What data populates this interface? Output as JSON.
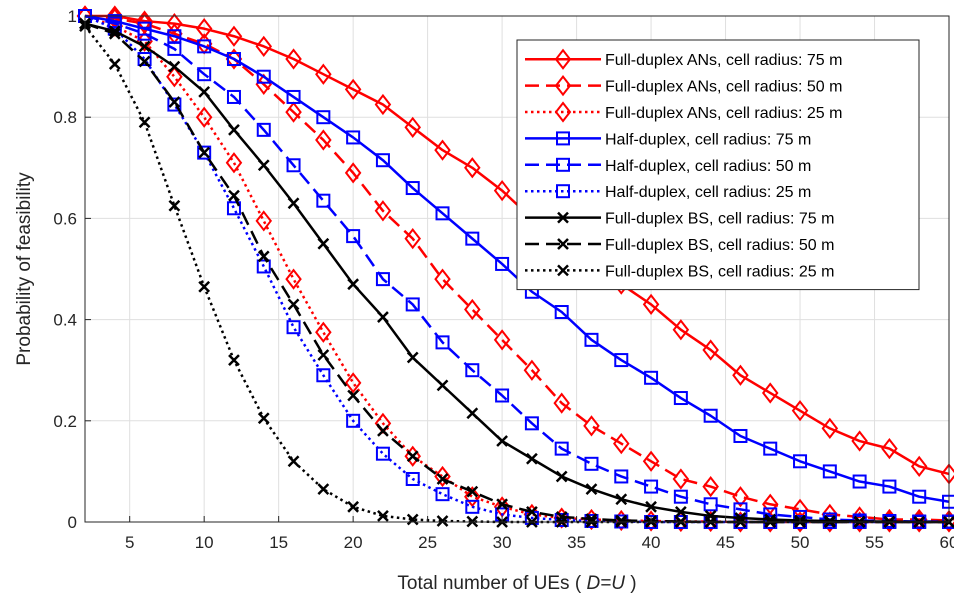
{
  "chart_data": {
    "type": "line",
    "xlabel": "Total number of UEs (",
    "xlabel_italic": "D=U",
    "xlabel_end": ")",
    "ylabel": "Probability of feasibility",
    "xlim": [
      2,
      60
    ],
    "ylim": [
      0,
      1
    ],
    "xticks": [
      5,
      10,
      15,
      20,
      25,
      30,
      35,
      40,
      45,
      50,
      55,
      60
    ],
    "yticks": [
      0,
      0.2,
      0.4,
      0.6,
      0.8,
      1
    ],
    "ytick_labels": [
      "0",
      "0.2",
      "0.4",
      "0.6",
      "0.8",
      "1"
    ],
    "grid": true,
    "legend_position": "top-right",
    "x": [
      2,
      4,
      6,
      8,
      10,
      12,
      14,
      16,
      18,
      20,
      22,
      24,
      26,
      28,
      30,
      32,
      34,
      36,
      38,
      40,
      42,
      44,
      46,
      48,
      50,
      52,
      54,
      56,
      58,
      60
    ],
    "series": [
      {
        "name": "Full-duplex ANs, cell radius: 75 m",
        "color": "#ff0000",
        "dash": "solid",
        "marker": "diamond",
        "values": [
          1.0,
          1.0,
          0.99,
          0.985,
          0.975,
          0.96,
          0.94,
          0.915,
          0.885,
          0.855,
          0.825,
          0.78,
          0.735,
          0.7,
          0.655,
          0.6,
          0.56,
          0.51,
          0.47,
          0.43,
          0.38,
          0.34,
          0.29,
          0.255,
          0.22,
          0.185,
          0.16,
          0.145,
          0.11,
          0.095
        ]
      },
      {
        "name": "Full-duplex ANs, cell radius: 50 m",
        "color": "#ff0000",
        "dash": "dashed",
        "marker": "diamond",
        "values": [
          1.0,
          0.995,
          0.985,
          0.965,
          0.945,
          0.915,
          0.865,
          0.81,
          0.755,
          0.69,
          0.615,
          0.56,
          0.48,
          0.42,
          0.36,
          0.3,
          0.235,
          0.19,
          0.155,
          0.12,
          0.085,
          0.07,
          0.05,
          0.035,
          0.025,
          0.015,
          0.01,
          0.005,
          0.005,
          0.003
        ]
      },
      {
        "name": "Full-duplex ANs, cell radius: 25 m",
        "color": "#ff0000",
        "dash": "dotted",
        "marker": "diamond",
        "values": [
          1.0,
          0.98,
          0.95,
          0.88,
          0.8,
          0.71,
          0.595,
          0.48,
          0.375,
          0.275,
          0.195,
          0.13,
          0.09,
          0.05,
          0.03,
          0.015,
          0.008,
          0.005,
          0.003,
          0.002,
          0.001,
          0.001,
          0.0,
          0.0,
          0.0,
          0.0,
          0.0,
          0.0,
          0.0,
          0.0
        ]
      },
      {
        "name": "Half-duplex, cell radius: 75 m",
        "color": "#0000ff",
        "dash": "solid",
        "marker": "square",
        "values": [
          1.0,
          0.99,
          0.975,
          0.96,
          0.94,
          0.915,
          0.88,
          0.84,
          0.8,
          0.76,
          0.715,
          0.66,
          0.61,
          0.56,
          0.51,
          0.455,
          0.415,
          0.36,
          0.32,
          0.285,
          0.245,
          0.21,
          0.17,
          0.145,
          0.12,
          0.1,
          0.08,
          0.07,
          0.05,
          0.04
        ]
      },
      {
        "name": "Half-duplex, cell radius: 50 m",
        "color": "#0000ff",
        "dash": "dashed",
        "marker": "square",
        "values": [
          1.0,
          0.985,
          0.965,
          0.935,
          0.885,
          0.84,
          0.775,
          0.705,
          0.635,
          0.565,
          0.48,
          0.43,
          0.355,
          0.3,
          0.25,
          0.195,
          0.145,
          0.115,
          0.09,
          0.07,
          0.05,
          0.035,
          0.025,
          0.015,
          0.01,
          0.005,
          0.003,
          0.002,
          0.001,
          0.001
        ]
      },
      {
        "name": "Half-duplex, cell radius: 25 m",
        "color": "#0000ff",
        "dash": "dotted",
        "marker": "square",
        "values": [
          1.0,
          0.975,
          0.915,
          0.825,
          0.73,
          0.62,
          0.505,
          0.385,
          0.29,
          0.2,
          0.135,
          0.085,
          0.055,
          0.03,
          0.015,
          0.008,
          0.004,
          0.002,
          0.001,
          0.0,
          0.0,
          0.0,
          0.0,
          0.0,
          0.0,
          0.0,
          0.0,
          0.0,
          0.0,
          0.0
        ]
      },
      {
        "name": "Full-duplex BS, cell radius: 75 m",
        "color": "#000000",
        "dash": "solid",
        "marker": "x",
        "values": [
          0.985,
          0.97,
          0.94,
          0.9,
          0.85,
          0.775,
          0.705,
          0.63,
          0.55,
          0.47,
          0.405,
          0.325,
          0.27,
          0.215,
          0.16,
          0.125,
          0.09,
          0.065,
          0.045,
          0.03,
          0.02,
          0.012,
          0.008,
          0.005,
          0.003,
          0.002,
          0.001,
          0.001,
          0.0,
          0.0
        ]
      },
      {
        "name": "Full-duplex BS, cell radius: 50 m",
        "color": "#000000",
        "dash": "dashed",
        "marker": "x",
        "values": [
          0.985,
          0.965,
          0.91,
          0.83,
          0.73,
          0.645,
          0.525,
          0.43,
          0.33,
          0.25,
          0.18,
          0.13,
          0.085,
          0.06,
          0.035,
          0.02,
          0.01,
          0.006,
          0.003,
          0.002,
          0.001,
          0.0,
          0.0,
          0.0,
          0.0,
          0.0,
          0.0,
          0.0,
          0.0,
          0.0
        ]
      },
      {
        "name": "Full-duplex BS, cell radius: 25 m",
        "color": "#000000",
        "dash": "dotted",
        "marker": "x",
        "values": [
          0.98,
          0.905,
          0.79,
          0.625,
          0.465,
          0.32,
          0.205,
          0.12,
          0.065,
          0.03,
          0.012,
          0.005,
          0.002,
          0.001,
          0.0,
          0.0,
          0.0,
          0.0,
          0.0,
          0.0,
          0.0,
          0.0,
          0.0,
          0.0,
          0.0,
          0.0,
          0.0,
          0.0,
          0.0,
          0.0
        ]
      }
    ]
  }
}
